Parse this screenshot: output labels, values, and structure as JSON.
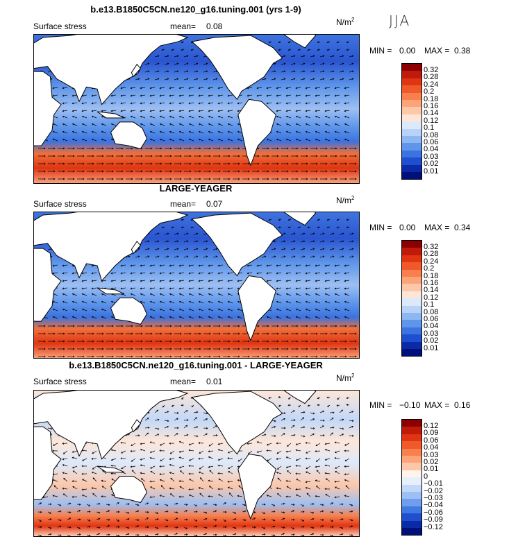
{
  "season_label": "JJA",
  "panels": [
    {
      "title": "b.e13.B1850C5CN.ne120_g16.tuning.001 (yrs 1-9)",
      "variable": "Surface stress",
      "mean_label": "mean=",
      "mean_value": "0.08",
      "units_base": "N/m",
      "units_exp": "2",
      "min_label": "MIN =",
      "min_value": "0.00",
      "max_label": "MAX =",
      "max_value": "0.38",
      "scale": "full",
      "levels": [
        "0.32",
        "0.28",
        "0.24",
        "0.2",
        "0.18",
        "0.16",
        "0.14",
        "0.12",
        "0.1",
        "0.08",
        "0.06",
        "0.04",
        "0.03",
        "0.02",
        "0.01"
      ],
      "colors": [
        "#8b0000",
        "#c01a0a",
        "#e03512",
        "#f05a2a",
        "#f7804e",
        "#fba47a",
        "#fdc7aa",
        "#fde6d8",
        "#dce9fb",
        "#b8d3f7",
        "#8db7f1",
        "#5f96ea",
        "#3b73e0",
        "#1f4fcf",
        "#0a2aa8",
        "#00107a"
      ]
    },
    {
      "title": "LARGE-YEAGER",
      "variable": "Surface stress",
      "mean_label": "mean=",
      "mean_value": "0.07",
      "units_base": "N/m",
      "units_exp": "2",
      "min_label": "MIN =",
      "min_value": "0.00",
      "max_label": "MAX =",
      "max_value": "0.34",
      "scale": "full",
      "levels": [
        "0.32",
        "0.28",
        "0.24",
        "0.2",
        "0.18",
        "0.16",
        "0.14",
        "0.12",
        "0.1",
        "0.08",
        "0.06",
        "0.04",
        "0.03",
        "0.02",
        "0.01"
      ],
      "colors": [
        "#8b0000",
        "#c01a0a",
        "#e03512",
        "#f05a2a",
        "#f7804e",
        "#fba47a",
        "#fdc7aa",
        "#fde6d8",
        "#dce9fb",
        "#b8d3f7",
        "#8db7f1",
        "#5f96ea",
        "#3b73e0",
        "#1f4fcf",
        "#0a2aa8",
        "#00107a"
      ]
    },
    {
      "title": "b.e13.B1850C5CN.ne120_g16.tuning.001 - LARGE-YEAGER",
      "variable": "Surface stress",
      "mean_label": "mean=",
      "mean_value": "0.01",
      "units_base": "N/m",
      "units_exp": "2",
      "min_label": "MIN =",
      "min_value": "−0.10",
      "max_label": "MAX =",
      "max_value": "0.16",
      "scale": "diff",
      "levels": [
        "0.12",
        "0.09",
        "0.06",
        "0.04",
        "0.03",
        "0.02",
        "0.01",
        "0",
        "−0.01",
        "−0.02",
        "−0.03",
        "−0.04",
        "−0.06",
        "−0.09",
        "−0.12"
      ],
      "colors": [
        "#8b0000",
        "#c01a0a",
        "#e03512",
        "#f05a2a",
        "#f7804e",
        "#fba47a",
        "#fdc7aa",
        "#fff3ea",
        "#e6effc",
        "#c3d8f8",
        "#9dbff3",
        "#6f9fec",
        "#4278e2",
        "#1f4fcf",
        "#0a2aa8",
        "#00107a"
      ]
    }
  ],
  "chart_data": [
    {
      "type": "heatmap",
      "title": "b.e13.B1850C5CN.ne120_g16.tuning.001 (yrs 1-9)",
      "subtitle": "Surface stress",
      "units": "N/m2",
      "mean": 0.08,
      "min": 0.0,
      "max": 0.38,
      "levels": [
        0.01,
        0.02,
        0.03,
        0.04,
        0.06,
        0.08,
        0.1,
        0.12,
        0.14,
        0.16,
        0.18,
        0.2,
        0.24,
        0.28,
        0.32
      ]
    },
    {
      "type": "heatmap",
      "title": "LARGE-YEAGER",
      "subtitle": "Surface stress",
      "units": "N/m2",
      "mean": 0.07,
      "min": 0.0,
      "max": 0.34,
      "levels": [
        0.01,
        0.02,
        0.03,
        0.04,
        0.06,
        0.08,
        0.1,
        0.12,
        0.14,
        0.16,
        0.18,
        0.2,
        0.24,
        0.28,
        0.32
      ]
    },
    {
      "type": "heatmap",
      "title": "b.e13.B1850C5CN.ne120_g16.tuning.001 - LARGE-YEAGER",
      "subtitle": "Surface stress",
      "units": "N/m2",
      "mean": 0.01,
      "min": -0.1,
      "max": 0.16,
      "levels": [
        -0.12,
        -0.09,
        -0.06,
        -0.04,
        -0.03,
        -0.02,
        -0.01,
        0,
        0.01,
        0.02,
        0.03,
        0.04,
        0.06,
        0.09,
        0.12
      ]
    }
  ]
}
